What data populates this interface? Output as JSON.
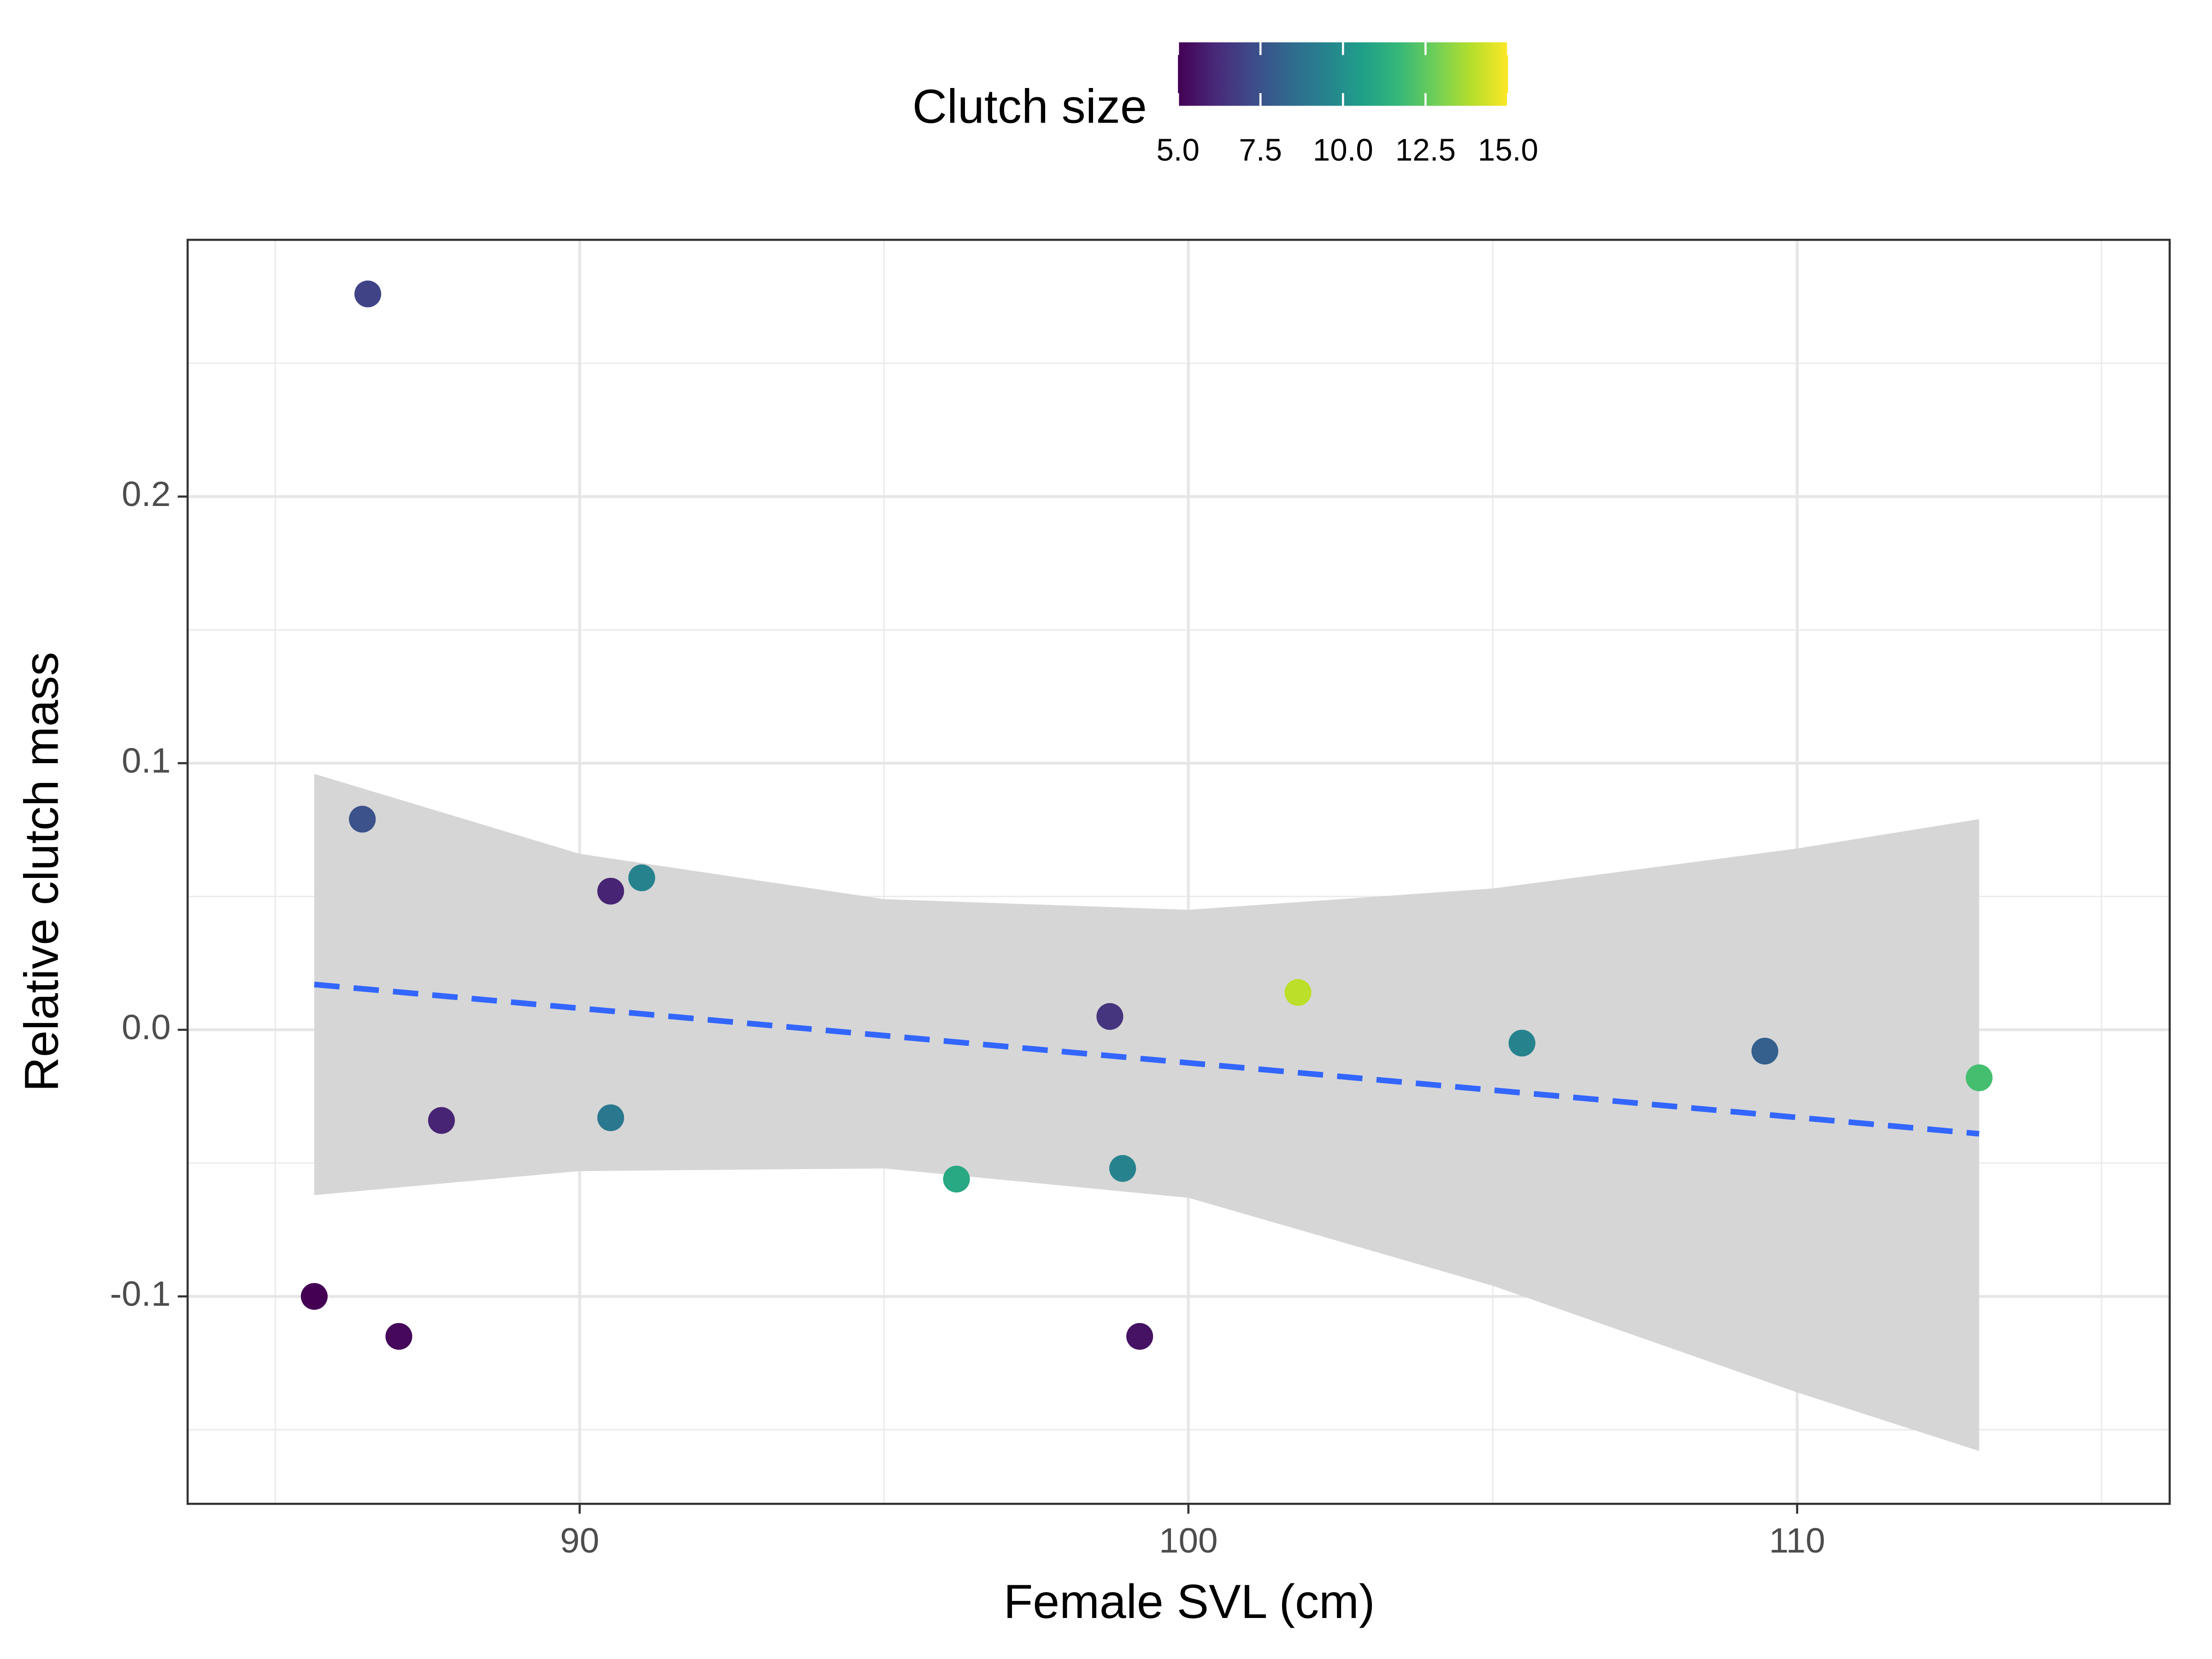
{
  "chart_data": {
    "type": "scatter",
    "x_label": "Female SVL (cm)",
    "y_label": "Relative clutch mass",
    "color_label": "Clutch size",
    "colormap": "viridis",
    "clim": [
      5,
      15
    ],
    "cticks": [
      {
        "value": 5,
        "label": "5.0"
      },
      7.5,
      {
        "value": 10,
        "label": "10.0"
      },
      12.5,
      {
        "value": 15,
        "label": "15.0"
      }
    ],
    "x": [
      86.52,
      86.43,
      85.64,
      87.03,
      87.73,
      90.51,
      91.02,
      90.51,
      96.19,
      98.71,
      98.92,
      99.2,
      101.8,
      105.48,
      109.47,
      112.99
    ],
    "y": [
      0.276,
      0.079,
      -0.1,
      -0.115,
      -0.034,
      0.052,
      0.057,
      -0.033,
      -0.056,
      0.005,
      -0.052,
      -0.115,
      0.014,
      -0.005,
      -0.008,
      -0.018
    ],
    "clutch_size": [
      7,
      7.5,
      5,
      5.2,
      6,
      6,
      9.5,
      9,
      11,
      6.5,
      9.5,
      5.5,
      14,
      9.5,
      8,
      12
    ],
    "fit": {
      "x": [
        85.64,
        112.99
      ],
      "y": [
        0.017,
        -0.039
      ],
      "color": "#3366ff"
    },
    "band": {
      "x": [
        85.64,
        90,
        95,
        100,
        105,
        110,
        112.99
      ],
      "upper": [
        0.096,
        0.066,
        0.049,
        0.045,
        0.053,
        0.068,
        0.079
      ],
      "lower": [
        -0.062,
        -0.053,
        -0.052,
        -0.063,
        -0.096,
        -0.136,
        -0.158
      ],
      "color": "#d6d6d6"
    },
    "xlim": [
      83.56,
      116.12
    ],
    "ylim": [
      -0.1778,
      0.2963
    ],
    "xticks": [
      90,
      100,
      110
    ],
    "yticks": [
      {
        "value": -0.1,
        "label": "-0.1"
      },
      {
        "value": 0,
        "label": "0.0"
      },
      0.1,
      0.2
    ],
    "xminor": [
      85,
      95,
      105,
      115
    ],
    "yminor": [
      -0.15,
      -0.05,
      0.05,
      0.15,
      0.25
    ],
    "grid": true
  }
}
